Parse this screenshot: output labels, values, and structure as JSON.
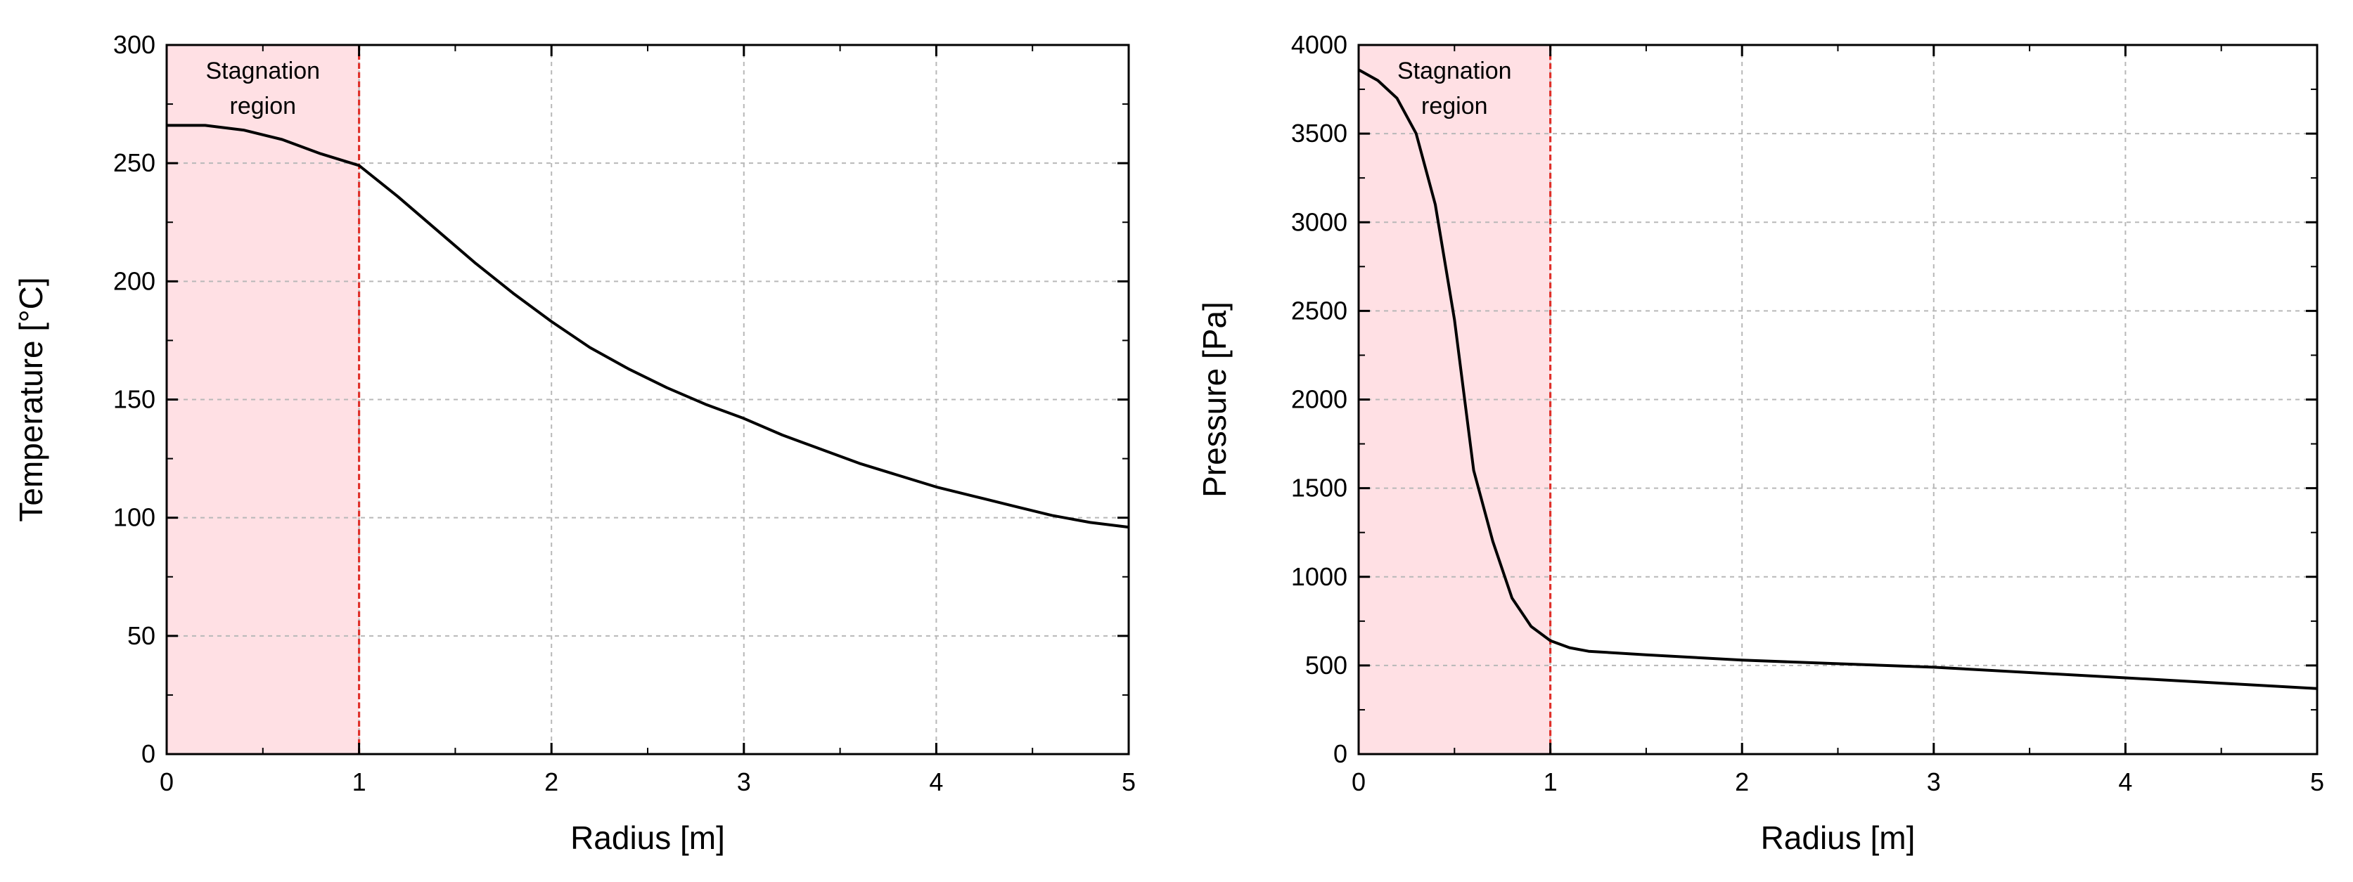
{
  "chart_data": [
    {
      "type": "line",
      "xlabel": "Radius [m]",
      "ylabel": "Temperature [°C]",
      "xlim": [
        0,
        5
      ],
      "ylim": [
        0,
        300
      ],
      "xticks": [
        0,
        1,
        2,
        3,
        4,
        5
      ],
      "yticks": [
        0,
        50,
        100,
        150,
        200,
        250,
        300
      ],
      "grid": true,
      "shaded_region": {
        "x0": 0,
        "x1": 1,
        "label": [
          "Stagnation",
          "region"
        ],
        "color": "#ffe0e4",
        "edge_color": "#e0302a"
      },
      "series": [
        {
          "x": [
            0,
            0.2,
            0.4,
            0.6,
            0.8,
            1.0,
            1.2,
            1.4,
            1.6,
            1.8,
            2.0,
            2.2,
            2.4,
            2.6,
            2.8,
            3.0,
            3.2,
            3.4,
            3.6,
            3.8,
            4.0,
            4.2,
            4.4,
            4.6,
            4.8,
            5.0
          ],
          "y": [
            266,
            266,
            264,
            260,
            254,
            249,
            236,
            222,
            208,
            195,
            183,
            172,
            163,
            155,
            148,
            142,
            135,
            129,
            123,
            118,
            113,
            109,
            105,
            101,
            98,
            96
          ]
        }
      ]
    },
    {
      "type": "line",
      "xlabel": "Radius [m]",
      "ylabel": "Pressure [Pa]",
      "xlim": [
        0,
        5
      ],
      "ylim": [
        0,
        4000
      ],
      "xticks": [
        0,
        1,
        2,
        3,
        4,
        5
      ],
      "yticks": [
        0,
        500,
        1000,
        1500,
        2000,
        2500,
        3000,
        3500,
        4000
      ],
      "grid": true,
      "shaded_region": {
        "x0": 0,
        "x1": 1,
        "label": [
          "Stagnation",
          "region"
        ],
        "color": "#ffe0e4",
        "edge_color": "#e0302a"
      },
      "series": [
        {
          "x": [
            0,
            0.1,
            0.2,
            0.3,
            0.4,
            0.5,
            0.6,
            0.7,
            0.8,
            0.9,
            1.0,
            1.1,
            1.2,
            1.5,
            2.0,
            2.5,
            3.0,
            3.5,
            4.0,
            4.5,
            5.0
          ],
          "y": [
            3860,
            3800,
            3700,
            3500,
            3100,
            2450,
            1600,
            1200,
            880,
            720,
            640,
            600,
            580,
            560,
            530,
            510,
            490,
            460,
            430,
            400,
            370
          ]
        }
      ]
    }
  ]
}
